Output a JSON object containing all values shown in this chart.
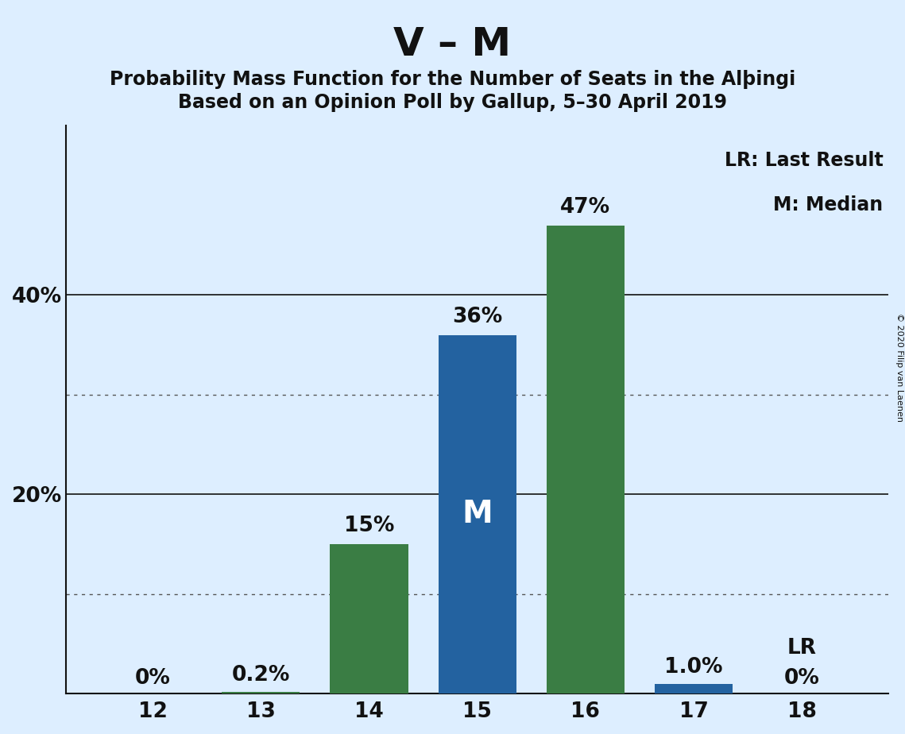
{
  "title": "V – M",
  "subtitle1": "Probability Mass Function for the Number of Seats in the Alþingi",
  "subtitle2": "Based on an Opinion Poll by Gallup, 5–30 April 2019",
  "copyright": "© 2020 Filip van Laenen",
  "seats": [
    12,
    13,
    14,
    15,
    16,
    17,
    18
  ],
  "values": [
    0.0,
    0.2,
    15.0,
    36.0,
    47.0,
    1.0,
    0.0
  ],
  "colors": [
    "#3a7d44",
    "#3a7d44",
    "#3a7d44",
    "#2362a0",
    "#3a7d44",
    "#2362a0",
    "#2362a0"
  ],
  "labels": [
    "0%",
    "0.2%",
    "15%",
    "36%",
    "47%",
    "1.0%",
    "0%"
  ],
  "median_seat": 15,
  "median_label": "M",
  "lr_seat": 18,
  "lr_label": "LR",
  "background_color": "#ddeeff",
  "ytick_positions": [
    20,
    40
  ],
  "ytick_labels": [
    "20%",
    "40%"
  ],
  "solid_gridlines": [
    20,
    40
  ],
  "dotted_gridlines": [
    10,
    30
  ],
  "ylim": [
    0,
    57
  ],
  "xlim_left": 11.2,
  "xlim_right": 18.8,
  "bar_width": 0.72,
  "title_fontsize": 36,
  "subtitle_fontsize": 17,
  "bar_label_fontsize": 19,
  "axis_tick_fontsize": 19,
  "legend_fontsize": 17,
  "median_label_fontsize": 28,
  "copyright_fontsize": 8
}
